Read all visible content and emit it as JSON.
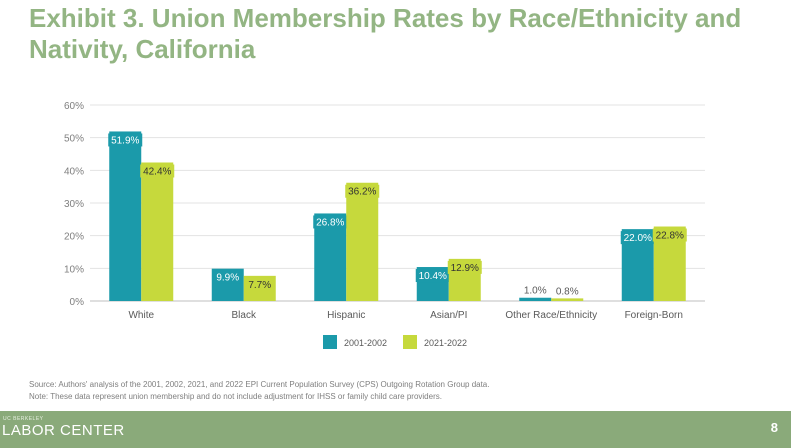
{
  "slide": {
    "title": "Exhibit 3. Union Membership Rates by Race/Ethnicity and Nativity, California",
    "source_note": "Source: Authors' analysis of the 2001, 2002, 2021, and 2022 EPI Current Population Survey (CPS) Outgoing Rotation Group data.",
    "note": "Note: These data represent union membership and do not include adjustment for IHSS or family child care providers.",
    "footer_small": "UC BERKELEY",
    "footer_brand": "LABOR CENTER",
    "page_number": "8"
  },
  "chart_data": {
    "type": "bar",
    "categories": [
      "White",
      "Black",
      "Hispanic",
      "Asian/PI",
      "Other Race/Ethnicity",
      "Foreign-Born"
    ],
    "series": [
      {
        "name": "2001-2002",
        "color": "#1b9aaa",
        "values": [
          51.9,
          9.9,
          26.8,
          10.4,
          1.0,
          22.0
        ],
        "labels": [
          "51.9%",
          "9.9%",
          "26.8%",
          "10.4%",
          "1.0%",
          "22.0%"
        ]
      },
      {
        "name": "2021-2022",
        "color": "#c6d93c",
        "values": [
          42.4,
          7.7,
          36.2,
          12.9,
          0.8,
          22.8
        ],
        "labels": [
          "42.4%",
          "7.7%",
          "36.2%",
          "12.9%",
          "0.8%",
          "22.8%"
        ]
      }
    ],
    "yticks": [
      "0%",
      "10%",
      "20%",
      "30%",
      "40%",
      "50%",
      "60%"
    ],
    "ylim": [
      0,
      60
    ],
    "legend": "bottom",
    "grid": true,
    "xlabel": "",
    "ylabel": ""
  }
}
